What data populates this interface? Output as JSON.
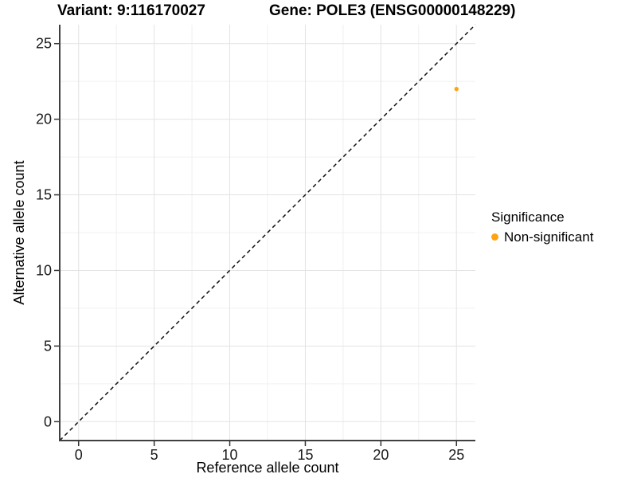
{
  "chart_data": {
    "type": "scatter",
    "title_left": "Variant: 9:116170027",
    "title_right": "Gene: POLE3 (ENSG00000148229)",
    "xlabel": "Reference allele count",
    "ylabel": "Alternative allele count",
    "xlim": [
      -1.25,
      26.25
    ],
    "ylim": [
      -1.25,
      26.25
    ],
    "xticks": [
      0,
      5,
      10,
      15,
      20,
      25
    ],
    "yticks": [
      0,
      5,
      10,
      15,
      20,
      25
    ],
    "minor_ticks": [
      2.5,
      7.5,
      12.5,
      17.5,
      22.5
    ],
    "grid": true,
    "reference_line": {
      "type": "identity",
      "from": [
        -1.25,
        -1.25
      ],
      "to": [
        26.25,
        26.25
      ],
      "style": "dashed",
      "color": "#111111"
    },
    "series": [
      {
        "name": "Non-significant",
        "color": "#FFA312",
        "points": [
          [
            25,
            22
          ]
        ]
      }
    ],
    "legend": {
      "title": "Significance",
      "position": "right",
      "items": [
        {
          "label": "Non-significant",
          "color": "#FFA312"
        }
      ]
    }
  },
  "colors": {
    "background": "#FFFFFF",
    "grid_major": "#E3E3E3",
    "grid_minor": "#F0F0F0",
    "axis_line": "#404040",
    "tick_mark": "#333333",
    "tick_text": "#1a1a1a"
  }
}
